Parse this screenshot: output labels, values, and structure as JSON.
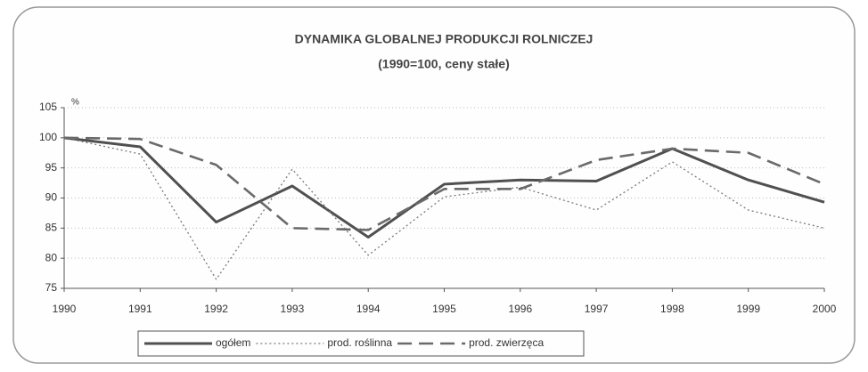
{
  "chart_data": {
    "type": "line",
    "title": "DYNAMIKA GLOBALNEJ PRODUKCJI ROLNICZEJ",
    "subtitle": "(1990=100, ceny stałe)",
    "y_label": "%",
    "x": [
      1990,
      1991,
      1992,
      1993,
      1994,
      1995,
      1996,
      1997,
      1998,
      1999,
      2000
    ],
    "xlim": [
      1990,
      2000
    ],
    "xticks": [
      1990,
      1991,
      1992,
      1993,
      1994,
      1995,
      1996,
      1997,
      1998,
      1999,
      2000
    ],
    "ylim": [
      75,
      105
    ],
    "yticks": [
      75,
      80,
      85,
      90,
      95,
      100,
      105
    ],
    "grid": true,
    "legend": "bottom",
    "series": [
      {
        "name": "ogółem",
        "color": "#505050",
        "style": "solid",
        "values": [
          100,
          98.5,
          86,
          92,
          83.5,
          92.3,
          93,
          92.8,
          98.2,
          93,
          89.3
        ]
      },
      {
        "name": "prod. roślinna",
        "color": "#7a7a7a",
        "style": "dotted",
        "values": [
          100,
          97.3,
          76.5,
          94.8,
          80.5,
          90.2,
          91.8,
          88,
          96,
          88,
          85
        ]
      },
      {
        "name": "prod. zwierzęca",
        "color": "#6a6a6a",
        "style": "dashed",
        "values": [
          100,
          99.8,
          95.5,
          85,
          84.7,
          91.5,
          91.5,
          96.3,
          98.2,
          97.5,
          92.3
        ]
      }
    ]
  }
}
